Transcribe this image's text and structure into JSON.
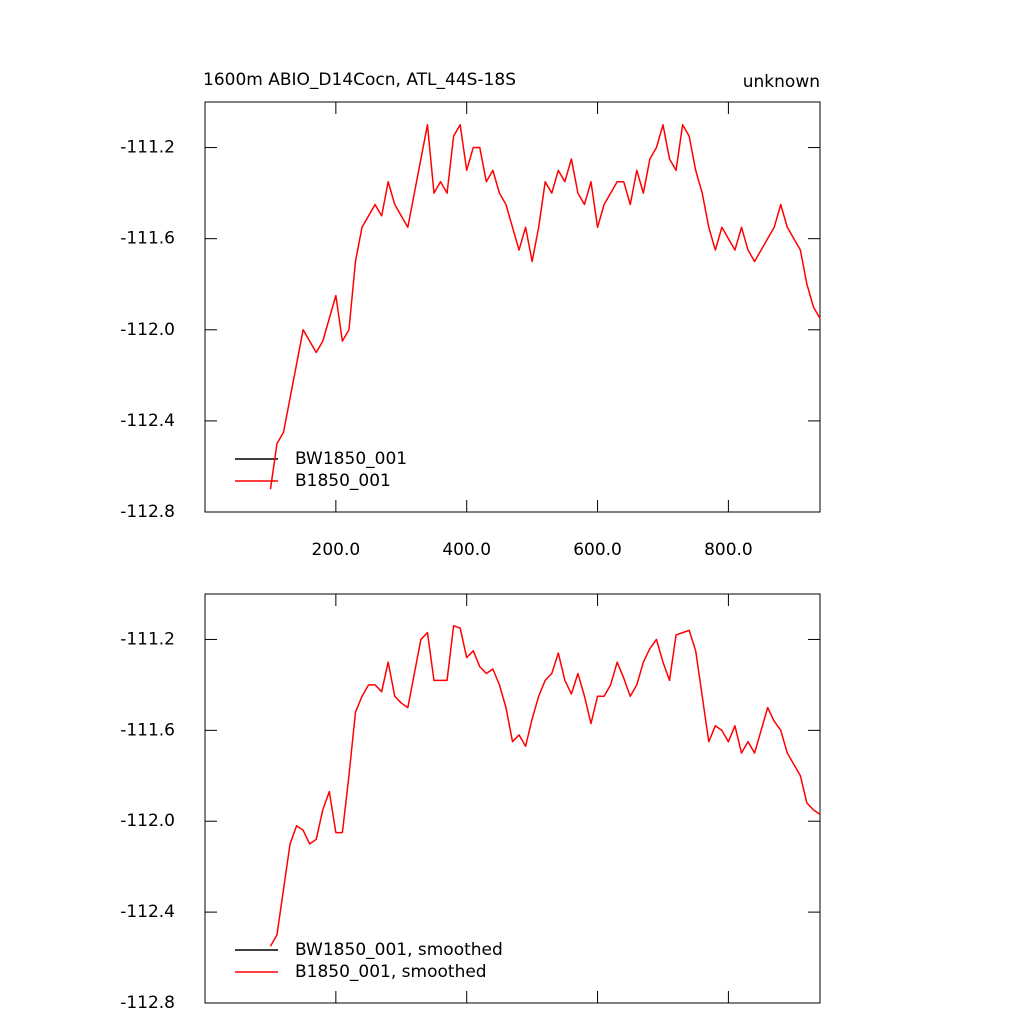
{
  "chart_data": [
    {
      "type": "line",
      "title": "1600m ABIO_D14Cocn, ATL_44S-18S",
      "subtitle": "unknown",
      "x": [
        100,
        110,
        120,
        130,
        140,
        150,
        160,
        170,
        180,
        190,
        200,
        210,
        220,
        230,
        240,
        250,
        260,
        270,
        280,
        290,
        300,
        310,
        320,
        330,
        340,
        350,
        360,
        370,
        380,
        390,
        400,
        410,
        420,
        430,
        440,
        450,
        460,
        470,
        480,
        490,
        500,
        510,
        520,
        530,
        540,
        550,
        560,
        570,
        580,
        590,
        600,
        610,
        620,
        630,
        640,
        650,
        660,
        670,
        680,
        690,
        700,
        710,
        720,
        730,
        740,
        750,
        760,
        770,
        780,
        790,
        800,
        810,
        820,
        830,
        840,
        850,
        860,
        870,
        880,
        890,
        900,
        910,
        920,
        930,
        940
      ],
      "series": [
        {
          "name": "BW1850_001",
          "color": "#000000",
          "values": [
            null,
            null,
            null,
            null,
            null,
            null,
            null,
            null,
            null,
            null,
            null,
            null,
            null,
            null,
            null,
            null,
            null,
            null,
            null,
            null,
            null,
            null,
            null,
            null,
            null,
            null,
            null,
            null,
            null,
            null,
            null,
            null,
            null,
            null,
            null,
            null,
            null,
            null,
            null,
            null,
            null,
            null,
            null,
            null,
            null,
            null,
            null,
            null,
            null,
            null,
            null,
            null,
            null,
            null,
            null,
            null,
            null,
            null,
            null,
            null,
            null,
            null,
            null,
            null,
            null,
            null,
            null,
            null,
            null,
            null,
            null,
            null,
            null,
            null,
            null,
            null,
            null,
            null,
            null,
            null,
            null,
            null,
            null,
            null,
            null
          ]
        },
        {
          "name": "B1850_001",
          "color": "#ff0000",
          "values": [
            -112.7,
            -112.5,
            -112.45,
            -112.3,
            -112.15,
            -112.0,
            -112.05,
            -112.1,
            -112.05,
            -111.95,
            -111.85,
            -112.05,
            -112.0,
            -111.7,
            -111.55,
            -111.5,
            -111.45,
            -111.5,
            -111.35,
            -111.45,
            -111.5,
            -111.55,
            -111.4,
            -111.25,
            -111.1,
            -111.4,
            -111.35,
            -111.4,
            -111.15,
            -111.1,
            -111.3,
            -111.2,
            -111.2,
            -111.35,
            -111.3,
            -111.4,
            -111.45,
            -111.55,
            -111.65,
            -111.55,
            -111.7,
            -111.55,
            -111.35,
            -111.4,
            -111.3,
            -111.35,
            -111.25,
            -111.4,
            -111.45,
            -111.35,
            -111.55,
            -111.45,
            -111.4,
            -111.35,
            -111.35,
            -111.45,
            -111.3,
            -111.4,
            -111.25,
            -111.2,
            -111.1,
            -111.25,
            -111.3,
            -111.1,
            -111.15,
            -111.3,
            -111.4,
            -111.55,
            -111.65,
            -111.55,
            -111.6,
            -111.65,
            -111.55,
            -111.65,
            -111.7,
            -111.65,
            -111.6,
            -111.55,
            -111.45,
            -111.55,
            -111.6,
            -111.65,
            -111.8,
            -111.9,
            -111.95
          ]
        }
      ],
      "xlim": [
        0,
        940
      ],
      "xticks": [
        {
          "value": 200,
          "label": "200.0"
        },
        {
          "value": 400,
          "label": "400.0"
        },
        {
          "value": 600,
          "label": "600.0"
        },
        {
          "value": 800,
          "label": "800.0"
        }
      ],
      "ylim": [
        -112.8,
        -111.0
      ],
      "yticks": [
        {
          "value": -112.8,
          "label": "-112.8"
        },
        {
          "value": -112.4,
          "label": "-112.4"
        },
        {
          "value": -112,
          "label": "-112.0"
        },
        {
          "value": -111.6,
          "label": "-111.6"
        },
        {
          "value": -111.2,
          "label": "-111.2"
        }
      ],
      "legend": "lower left"
    },
    {
      "type": "line",
      "x": [
        100,
        110,
        120,
        130,
        140,
        150,
        160,
        170,
        180,
        190,
        200,
        210,
        220,
        230,
        240,
        250,
        260,
        270,
        280,
        290,
        300,
        310,
        320,
        330,
        340,
        350,
        360,
        370,
        380,
        390,
        400,
        410,
        420,
        430,
        440,
        450,
        460,
        470,
        480,
        490,
        500,
        510,
        520,
        530,
        540,
        550,
        560,
        570,
        580,
        590,
        600,
        610,
        620,
        630,
        640,
        650,
        660,
        670,
        680,
        690,
        700,
        710,
        720,
        730,
        740,
        750,
        760,
        770,
        780,
        790,
        800,
        810,
        820,
        830,
        840,
        850,
        860,
        870,
        880,
        890,
        900,
        910,
        920,
        930,
        940
      ],
      "series": [
        {
          "name": "BW1850_001, smoothed",
          "color": "#000000",
          "values": [
            null,
            null,
            null,
            null,
            null,
            null,
            null,
            null,
            null,
            null,
            null,
            null,
            null,
            null,
            null,
            null,
            null,
            null,
            null,
            null,
            null,
            null,
            null,
            null,
            null,
            null,
            null,
            null,
            null,
            null,
            null,
            null,
            null,
            null,
            null,
            null,
            null,
            null,
            null,
            null,
            null,
            null,
            null,
            null,
            null,
            null,
            null,
            null,
            null,
            null,
            null,
            null,
            null,
            null,
            null,
            null,
            null,
            null,
            null,
            null,
            null,
            null,
            null,
            null,
            null,
            null,
            null,
            null,
            null,
            null,
            null,
            null,
            null,
            null,
            null,
            null,
            null,
            null,
            null,
            null,
            null,
            null,
            null,
            null,
            null
          ]
        },
        {
          "name": "B1850_001, smoothed",
          "color": "#ff0000",
          "values": [
            -112.55,
            -112.5,
            -112.3,
            -112.1,
            -112.02,
            -112.04,
            -112.1,
            -112.08,
            -111.95,
            -111.87,
            -112.05,
            -112.05,
            -111.8,
            -111.52,
            -111.45,
            -111.4,
            -111.4,
            -111.43,
            -111.3,
            -111.45,
            -111.48,
            -111.5,
            -111.35,
            -111.2,
            -111.17,
            -111.38,
            -111.38,
            -111.38,
            -111.14,
            -111.15,
            -111.28,
            -111.25,
            -111.32,
            -111.35,
            -111.33,
            -111.4,
            -111.5,
            -111.65,
            -111.62,
            -111.67,
            -111.55,
            -111.45,
            -111.38,
            -111.35,
            -111.26,
            -111.38,
            -111.44,
            -111.35,
            -111.45,
            -111.57,
            -111.45,
            -111.45,
            -111.4,
            -111.3,
            -111.37,
            -111.45,
            -111.4,
            -111.3,
            -111.24,
            -111.2,
            -111.3,
            -111.38,
            -111.18,
            -111.17,
            -111.16,
            -111.25,
            -111.45,
            -111.65,
            -111.58,
            -111.6,
            -111.65,
            -111.58,
            -111.7,
            -111.65,
            -111.7,
            -111.6,
            -111.5,
            -111.56,
            -111.6,
            -111.7,
            -111.75,
            -111.8,
            -111.92,
            -111.95,
            -111.97
          ]
        }
      ],
      "xlim": [
        0,
        940
      ],
      "xticks": [
        200,
        400,
        600,
        800
      ],
      "xtick_labels": false,
      "ylim": [
        -112.8,
        -111.0
      ],
      "yticks": [
        {
          "value": -112.8,
          "label": "-112.8"
        },
        {
          "value": -112.4,
          "label": "-112.4"
        },
        {
          "value": -112,
          "label": "-112.0"
        },
        {
          "value": -111.6,
          "label": "-111.6"
        },
        {
          "value": -111.2,
          "label": "-111.2"
        }
      ],
      "legend": "lower left"
    }
  ]
}
